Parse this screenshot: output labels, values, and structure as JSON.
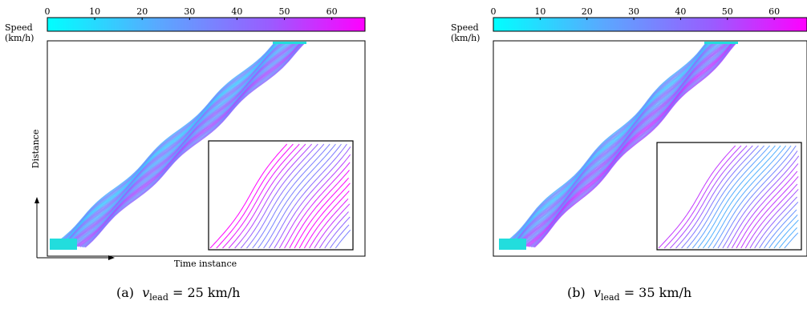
{
  "chart_data": [
    {
      "type": "line",
      "panel_label": "(a)",
      "caption_var": "v",
      "caption_sub": "lead",
      "caption_value": "= 25 km/h",
      "colorbar": {
        "label_line1": "Speed",
        "label_line2": "(km/h)",
        "ticks": [
          0,
          10,
          20,
          30,
          40,
          50,
          60
        ],
        "range": [
          0,
          67
        ],
        "colors": [
          "#00ffff",
          "#5aa8ff",
          "#9a5cff",
          "#ff00ff"
        ]
      },
      "xlabel": "Time instance",
      "ylabel": "Distance",
      "inset": true
    },
    {
      "type": "line",
      "panel_label": "(b)",
      "caption_var": "v",
      "caption_sub": "lead",
      "caption_value": "= 35 km/h",
      "colorbar": {
        "label_line1": "Speed",
        "label_line2": "(km/h)",
        "ticks": [
          0,
          10,
          20,
          30,
          40,
          50,
          60
        ],
        "range": [
          0,
          67
        ],
        "colors": [
          "#00ffff",
          "#5aa8ff",
          "#9a5cff",
          "#ff00ff"
        ]
      },
      "xlabel": "",
      "ylabel": "",
      "inset": true
    }
  ]
}
